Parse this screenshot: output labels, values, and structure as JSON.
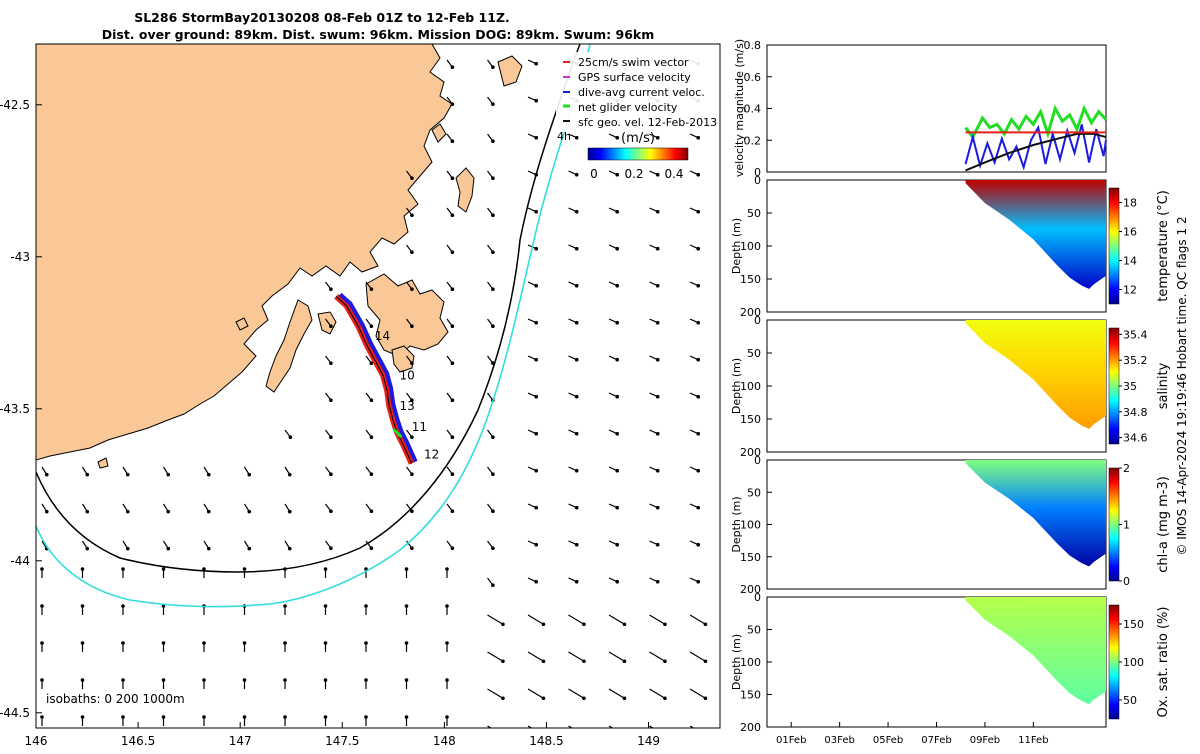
{
  "header": {
    "line1": "SL286 StormBay20130208 08-Feb 01Z to 12-Feb 11Z.",
    "line2": "Dist. over ground: 89km. Dist. swum: 96km. Mission DOG: 89km. Swum: 96km"
  },
  "footer_credit": "© IMOS 14-Apr-2024 19:19:46 Hobart time. QC flags 1  2",
  "colors": {
    "land": "#F9C896",
    "coast": "#000000",
    "isobath_200": "#000000",
    "isobath_1000": "#33DDDD",
    "track": "#E8201A",
    "current": "#1A1AE0",
    "net_velocity": "#22DD22",
    "geo_velocity": "#111111"
  },
  "chart_data": [
    {
      "id": "map",
      "type": "scatter",
      "xlim": [
        146.0,
        149.35
      ],
      "ylim": [
        -44.55,
        -42.3
      ],
      "x_ticks": [
        "146",
        "146.5",
        "147",
        "147.5",
        "148",
        "148.5",
        "149"
      ],
      "y_ticks": [
        "-42.5",
        "-43",
        "-43.5",
        "-44",
        "-44.5"
      ],
      "legend": [
        "25cm/s swim vector",
        "GPS surface velocity",
        "dive-avg current veloc.",
        "net glider velocity",
        "sfc geo. vel. 12-Feb-2013"
      ],
      "legend_extra": "4h",
      "colorbar_title": "(m/s)",
      "colorbar_ticks": [
        "0",
        "0.2",
        "0.4"
      ],
      "isobaths_label": "isobaths: 0   200  1000m",
      "glider_track": {
        "lon": [
          147.47,
          147.52,
          147.58,
          147.62,
          147.66,
          147.7,
          147.72,
          147.73,
          147.75,
          147.77,
          147.8,
          147.84
        ],
        "lat": [
          -43.13,
          -43.16,
          -43.23,
          -43.29,
          -43.34,
          -43.39,
          -43.44,
          -43.49,
          -43.54,
          -43.58,
          -43.62,
          -43.68
        ]
      },
      "day_labels": [
        {
          "text": "14",
          "lon": 147.66,
          "lat": -43.26
        },
        {
          "text": "10",
          "lon": 147.78,
          "lat": -43.39
        },
        {
          "text": "13",
          "lon": 147.78,
          "lat": -43.49
        },
        {
          "text": "11",
          "lon": 147.84,
          "lat": -43.56
        },
        {
          "text": "12",
          "lon": 147.9,
          "lat": -43.65
        }
      ]
    },
    {
      "id": "velocity",
      "type": "line",
      "ylabel": "velocity magnitude (m/s)",
      "ylim": [
        0,
        0.8
      ],
      "y_ticks": [
        "0",
        "0.2",
        "0.4",
        "0.6",
        "0.8"
      ],
      "xlim_day": [
        0,
        14
      ],
      "series": [
        {
          "color": "#22DD22",
          "x": [
            8.2,
            8.5,
            8.9,
            9.2,
            9.5,
            9.8,
            10.1,
            10.4,
            10.7,
            11.0,
            11.3,
            11.6,
            11.9,
            12.2,
            12.5,
            12.8,
            13.1,
            13.4,
            13.7,
            14.0
          ],
          "values": [
            0.28,
            0.22,
            0.34,
            0.28,
            0.3,
            0.24,
            0.33,
            0.27,
            0.35,
            0.3,
            0.38,
            0.24,
            0.4,
            0.32,
            0.36,
            0.27,
            0.4,
            0.31,
            0.38,
            0.33
          ]
        },
        {
          "color": "#1A1AE0",
          "x": [
            8.2,
            8.5,
            8.8,
            9.1,
            9.4,
            9.7,
            10.0,
            10.3,
            10.6,
            10.9,
            11.2,
            11.5,
            11.8,
            12.1,
            12.4,
            12.7,
            13.0,
            13.3,
            13.6,
            13.9,
            14.0
          ],
          "values": [
            0.05,
            0.22,
            0.04,
            0.18,
            0.06,
            0.21,
            0.08,
            0.16,
            0.03,
            0.2,
            0.28,
            0.05,
            0.24,
            0.08,
            0.26,
            0.12,
            0.3,
            0.06,
            0.27,
            0.1,
            0.2
          ]
        },
        {
          "color": "#111111",
          "x": [
            8.2,
            9.0,
            10.0,
            11.0,
            12.0,
            12.8,
            13.5,
            14.0
          ],
          "values": [
            0.01,
            0.06,
            0.12,
            0.17,
            0.21,
            0.24,
            0.24,
            0.22
          ]
        },
        {
          "color": "#E8201A",
          "x": [
            8.2,
            14.0
          ],
          "values": [
            0.25,
            0.25
          ]
        }
      ]
    },
    {
      "id": "temperature",
      "type": "heatmap",
      "colorbar_label": "temperature (°C)",
      "cb_ticks": [
        "12",
        "14",
        "16",
        "18"
      ],
      "cb_range": [
        11,
        19
      ],
      "ylabel": "Depth (m)",
      "y_ticks": [
        "0",
        "50",
        "100",
        "150",
        "200"
      ],
      "ylim": [
        200,
        0
      ],
      "surface_value": 18.5,
      "deep_value": 13.5,
      "bottom_value": 11.5
    },
    {
      "id": "salinity",
      "type": "heatmap",
      "colorbar_label": "salinity",
      "cb_ticks": [
        "34.6",
        "34.8",
        "35",
        "35.2",
        "35.4"
      ],
      "cb_range": [
        34.55,
        35.45
      ],
      "ylabel": "Depth (m)",
      "y_ticks": [
        "0",
        "50",
        "100",
        "150",
        "200"
      ],
      "ylim": [
        200,
        0
      ],
      "surface_value": 35.1,
      "deep_value": 35.15,
      "bottom_value": 35.2
    },
    {
      "id": "chla",
      "type": "heatmap",
      "colorbar_label": "chl-a (mg m-3)",
      "cb_ticks": [
        "0",
        "1",
        "2"
      ],
      "cb_range": [
        0,
        2
      ],
      "ylabel": "Depth (m)",
      "y_ticks": [
        "0",
        "50",
        "100",
        "150",
        "200"
      ],
      "ylim": [
        200,
        0
      ],
      "surface_value": 1.0,
      "deep_value": 0.5,
      "bottom_value": 0.05
    },
    {
      "id": "oxygen",
      "type": "heatmap",
      "colorbar_label": "Ox. sat. ratio (%)",
      "cb_ticks": [
        "50",
        "100",
        "150"
      ],
      "cb_range": [
        25,
        175
      ],
      "ylabel": "Depth (m)",
      "y_ticks": [
        "0",
        "50",
        "100",
        "150",
        "200"
      ],
      "ylim": [
        200,
        0
      ],
      "surface_value": 108,
      "deep_value": 102,
      "bottom_value": 95
    }
  ],
  "time_axis": {
    "ticks": [
      "01Feb",
      "03Feb",
      "05Feb",
      "07Feb",
      "09Feb",
      "11Feb"
    ],
    "tick_days": [
      1,
      3,
      5,
      7,
      9,
      11
    ],
    "sample_start_day": 8.2,
    "sample_end_day": 14.0
  },
  "profile_bottom_depth": {
    "day": [
      8.2,
      9.0,
      10.0,
      11.0,
      11.5,
      12.0,
      12.5,
      13.0,
      13.3,
      13.5,
      14.0
    ],
    "depth": [
      5,
      35,
      60,
      90,
      110,
      130,
      148,
      160,
      165,
      158,
      145
    ]
  }
}
